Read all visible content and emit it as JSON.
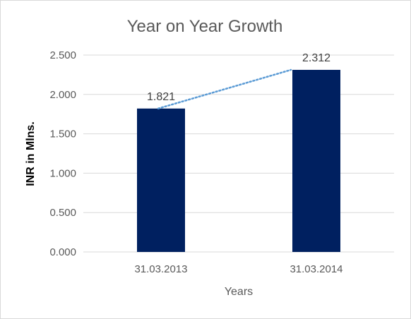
{
  "chart_data": {
    "type": "bar",
    "title": "Year on Year Growth",
    "xlabel": "Years",
    "ylabel": "INR in Mlns.",
    "categories": [
      "31.03.2013",
      "31.03.2014"
    ],
    "values": [
      1.821,
      2.312
    ],
    "data_labels": [
      "1.821",
      "2.312"
    ],
    "ylim": [
      0,
      2.5
    ],
    "y_ticks": [
      "0.000",
      "0.500",
      "1.000",
      "1.500",
      "2.000",
      "2.500"
    ],
    "grid": true,
    "legend": "none",
    "trendline": "linear",
    "bar_color": "#002060",
    "trendline_color": "#5b9bd5",
    "gridline_color": "#d9d9d9"
  }
}
